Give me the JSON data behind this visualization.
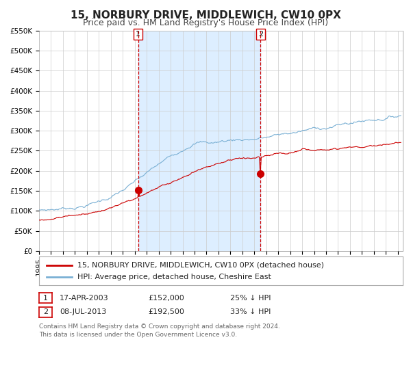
{
  "title": "15, NORBURY DRIVE, MIDDLEWICH, CW10 0PX",
  "subtitle": "Price paid vs. HM Land Registry's House Price Index (HPI)",
  "ylim": [
    0,
    550000
  ],
  "ytick_labels": [
    "£0",
    "£50K",
    "£100K",
    "£150K",
    "£200K",
    "£250K",
    "£300K",
    "£350K",
    "£400K",
    "£450K",
    "£500K",
    "£550K"
  ],
  "sale_color": "#cc0000",
  "hpi_color": "#7ab0d4",
  "shade_color": "#ddeeff",
  "sale_label": "15, NORBURY DRIVE, MIDDLEWICH, CW10 0PX (detached house)",
  "hpi_label": "HPI: Average price, detached house, Cheshire East",
  "vline_color": "#cc0000",
  "t1_date_str": "17-APR-2003",
  "t1_price_str": "£152,000",
  "t1_pct_str": "25% ↓ HPI",
  "t2_date_str": "08-JUL-2013",
  "t2_price_str": "£192,500",
  "t2_pct_str": "33% ↓ HPI",
  "footer1": "Contains HM Land Registry data © Crown copyright and database right 2024.",
  "footer2": "This data is licensed under the Open Government Licence v3.0.",
  "background_color": "#ffffff",
  "grid_color": "#cccccc",
  "title_fontsize": 11,
  "subtitle_fontsize": 9,
  "tick_fontsize": 7.5,
  "legend_fontsize": 8,
  "annot_fontsize": 8,
  "footer_fontsize": 6.5
}
